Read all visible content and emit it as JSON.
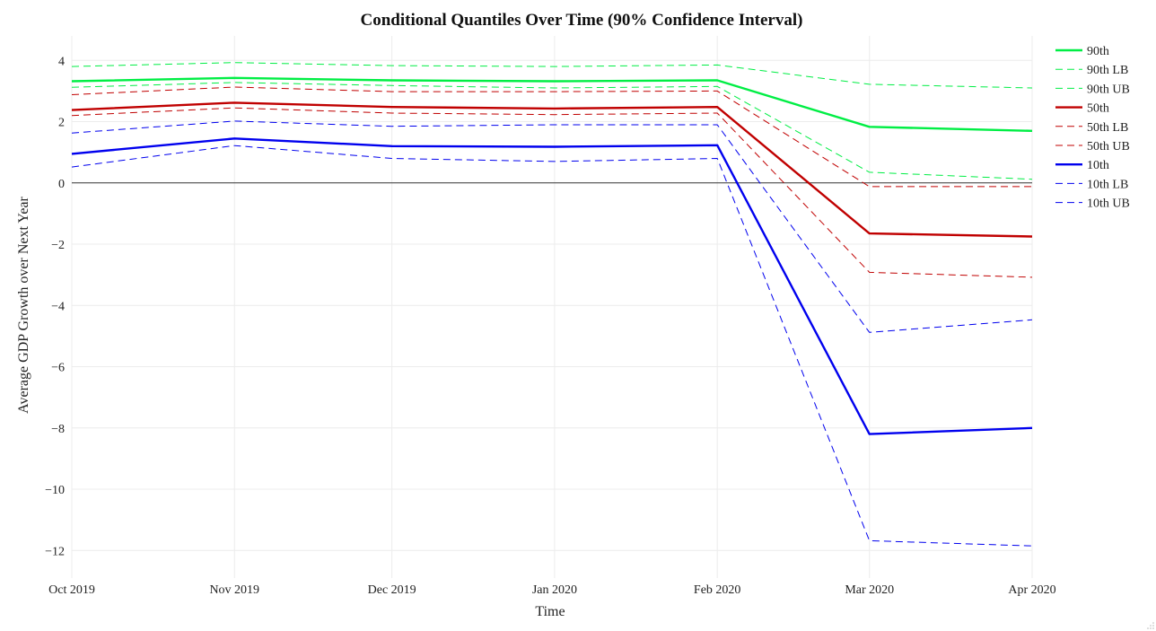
{
  "chart_data": {
    "type": "line",
    "title": "Conditional Quantiles Over Time (90% Confidence Interval)",
    "xlabel": "Time",
    "ylabel": "Average GDP Growth over Next Year",
    "categories": [
      "Oct 2019",
      "Nov 2019",
      "Dec 2019",
      "Jan 2020",
      "Feb 2020",
      "Mar 2020",
      "Apr 2020"
    ],
    "x_dates": [
      "2019-10-01",
      "2019-11-01",
      "2019-12-01",
      "2020-01-01",
      "2020-02-01",
      "2020-03-01",
      "2020-04-01"
    ],
    "ylim": [
      -12.9,
      4.8
    ],
    "yticks": [
      4,
      2,
      0,
      -2,
      -4,
      -6,
      -8,
      -10,
      -12
    ],
    "ytick_labels": [
      "4",
      "2",
      "0",
      "−2",
      "−4",
      "−6",
      "−8",
      "−10",
      "−12"
    ],
    "grid": true,
    "zero_line": true,
    "legend_position": "top-right",
    "series": [
      {
        "name": "90th",
        "color": "#00ee44",
        "dash": "solid",
        "values": [
          3.32,
          3.43,
          3.35,
          3.32,
          3.35,
          1.83,
          1.7
        ]
      },
      {
        "name": "90th LB",
        "color": "#00ee44",
        "dash": "dashed",
        "values": [
          3.8,
          3.93,
          3.83,
          3.8,
          3.85,
          3.22,
          3.1
        ]
      },
      {
        "name": "90th UB",
        "color": "#00ee44",
        "dash": "dashed",
        "values": [
          3.12,
          3.28,
          3.18,
          3.1,
          3.15,
          0.35,
          0.12
        ]
      },
      {
        "name": "50th",
        "color": "#c00000",
        "dash": "solid",
        "values": [
          2.38,
          2.62,
          2.48,
          2.43,
          2.48,
          -1.65,
          -1.75
        ]
      },
      {
        "name": "50th LB",
        "color": "#c00000",
        "dash": "dashed",
        "values": [
          2.88,
          3.13,
          2.98,
          2.98,
          3.0,
          -0.12,
          -0.12
        ]
      },
      {
        "name": "50th UB",
        "color": "#c00000",
        "dash": "dashed",
        "values": [
          2.2,
          2.45,
          2.28,
          2.23,
          2.28,
          -2.92,
          -3.08
        ]
      },
      {
        "name": "10th",
        "color": "#0000ee",
        "dash": "solid",
        "values": [
          0.95,
          1.45,
          1.2,
          1.18,
          1.23,
          -8.2,
          -8.0
        ]
      },
      {
        "name": "10th LB",
        "color": "#0000ee",
        "dash": "dashed",
        "values": [
          1.63,
          2.02,
          1.85,
          1.9,
          1.9,
          -4.88,
          -4.47
        ]
      },
      {
        "name": "10th UB",
        "color": "#0000ee",
        "dash": "dashed",
        "values": [
          0.52,
          1.22,
          0.8,
          0.7,
          0.8,
          -11.68,
          -11.85
        ]
      }
    ]
  }
}
